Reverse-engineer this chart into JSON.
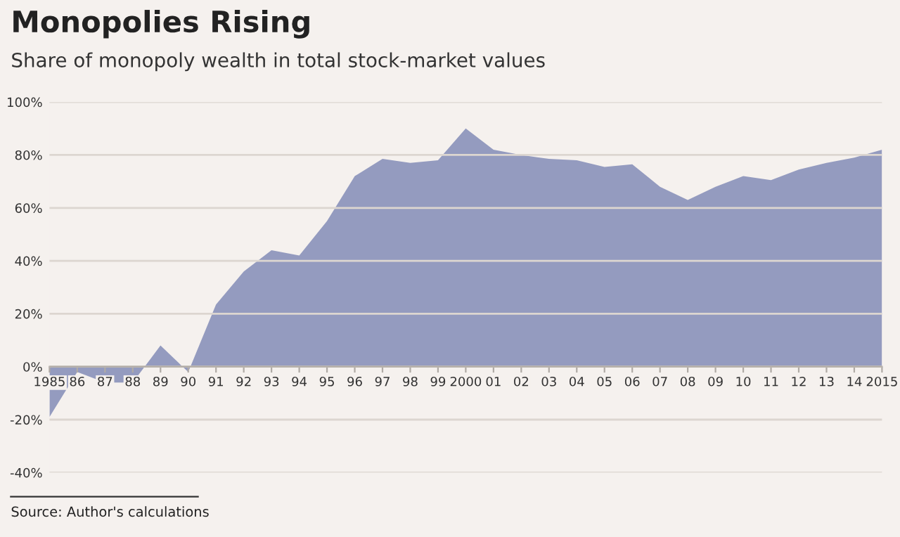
{
  "chart_data": {
    "type": "area",
    "title": "Monopolies Rising",
    "subtitle": "Share of monopoly wealth in total stock-market values",
    "categories": [
      "1985",
      "86",
      "87",
      "88",
      "89",
      "90",
      "91",
      "92",
      "93",
      "94",
      "95",
      "96",
      "97",
      "98",
      "99",
      "2000",
      "01",
      "02",
      "03",
      "04",
      "05",
      "06",
      "07",
      "08",
      "09",
      "10",
      "11",
      "12",
      "13",
      "14",
      "2015"
    ],
    "series": [
      {
        "color": "#949bbf",
        "values": [
          -19,
          -2,
          -6,
          -6,
          8,
          -2,
          23.5,
          36,
          44,
          42,
          55,
          72,
          78.5,
          77,
          78,
          90,
          82,
          80,
          78.5,
          78,
          75.5,
          76.5,
          68,
          63,
          68,
          72,
          70.5,
          74.5,
          77,
          79,
          82
        ]
      }
    ],
    "ylim": [
      -40,
      100
    ],
    "yticks": [
      {
        "value": -40,
        "label": "-40%"
      },
      {
        "value": -20,
        "label": "-20%"
      },
      {
        "value": 0,
        "label": "0%"
      },
      {
        "value": 20,
        "label": "20%"
      },
      {
        "value": 40,
        "label": "40%"
      },
      {
        "value": 60,
        "label": "60%"
      },
      {
        "value": 80,
        "label": "80%"
      },
      {
        "value": 100,
        "label": "100%"
      }
    ],
    "grid": "y",
    "annotations": [
      "Source: Author's calculations"
    ]
  }
}
